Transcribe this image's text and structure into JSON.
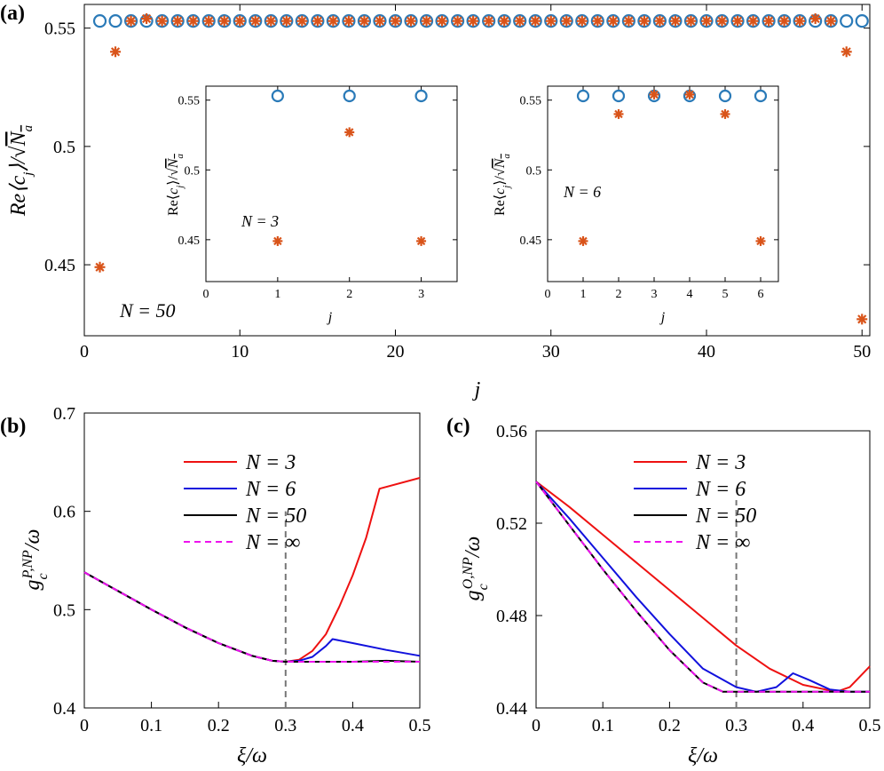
{
  "chart_data": [
    {
      "id": "a",
      "panel_label": "(a)",
      "type": "scatter",
      "xlabel": "j",
      "ylabel": "Re⟨c_j⟩/√N_a",
      "xlim": [
        0,
        50.5
      ],
      "ylim": [
        0.42,
        0.56
      ],
      "xticks": [
        "0",
        "10",
        "20",
        "30",
        "40",
        "50"
      ],
      "yticks": [
        "0.45",
        "0.5",
        "0.55"
      ],
      "annotation": "N = 50",
      "series": [
        {
          "name": "circles",
          "marker": "circle",
          "color": "#2a7ab8",
          "x": [
            1,
            2,
            3,
            4,
            5,
            6,
            7,
            8,
            9,
            10,
            11,
            12,
            13,
            14,
            15,
            16,
            17,
            18,
            19,
            20,
            21,
            22,
            23,
            24,
            25,
            26,
            27,
            28,
            29,
            30,
            31,
            32,
            33,
            34,
            35,
            36,
            37,
            38,
            39,
            40,
            41,
            42,
            43,
            44,
            45,
            46,
            47,
            48,
            49,
            50
          ],
          "y": [
            0.553,
            0.553,
            0.553,
            0.553,
            0.553,
            0.553,
            0.553,
            0.553,
            0.553,
            0.553,
            0.553,
            0.553,
            0.553,
            0.553,
            0.553,
            0.553,
            0.553,
            0.553,
            0.553,
            0.553,
            0.553,
            0.553,
            0.553,
            0.553,
            0.553,
            0.553,
            0.553,
            0.553,
            0.553,
            0.553,
            0.553,
            0.553,
            0.553,
            0.553,
            0.553,
            0.553,
            0.553,
            0.553,
            0.553,
            0.553,
            0.553,
            0.553,
            0.553,
            0.553,
            0.553,
            0.553,
            0.553,
            0.553,
            0.553,
            0.553
          ]
        },
        {
          "name": "stars",
          "marker": "star",
          "color": "#d9541a",
          "x": [
            1,
            2,
            3,
            4,
            5,
            6,
            7,
            8,
            9,
            10,
            11,
            12,
            13,
            14,
            15,
            16,
            17,
            18,
            19,
            20,
            21,
            22,
            23,
            24,
            25,
            26,
            27,
            28,
            29,
            30,
            31,
            32,
            33,
            34,
            35,
            36,
            37,
            38,
            39,
            40,
            41,
            42,
            43,
            44,
            45,
            46,
            47,
            48,
            49,
            50
          ],
          "y": [
            0.449,
            0.54,
            0.553,
            0.554,
            0.553,
            0.553,
            0.553,
            0.553,
            0.553,
            0.553,
            0.553,
            0.553,
            0.553,
            0.553,
            0.553,
            0.553,
            0.553,
            0.553,
            0.553,
            0.553,
            0.553,
            0.553,
            0.553,
            0.553,
            0.553,
            0.553,
            0.553,
            0.553,
            0.553,
            0.553,
            0.553,
            0.553,
            0.553,
            0.553,
            0.553,
            0.553,
            0.553,
            0.553,
            0.553,
            0.553,
            0.553,
            0.553,
            0.553,
            0.553,
            0.553,
            0.553,
            0.554,
            0.553,
            0.54,
            0.427
          ]
        }
      ]
    },
    {
      "id": "inset1",
      "type": "scatter",
      "xlabel": "j",
      "ylabel": "Re⟨c_j⟩/√N_a",
      "xlim": [
        0,
        3.5
      ],
      "ylim": [
        0.42,
        0.56
      ],
      "xticks": [
        "0",
        "1",
        "2",
        "3"
      ],
      "yticks": [
        "0.45",
        "0.5",
        "0.55"
      ],
      "annotation": "N = 3",
      "series": [
        {
          "name": "circles",
          "marker": "circle",
          "color": "#2a7ab8",
          "x": [
            1,
            2,
            3
          ],
          "y": [
            0.553,
            0.553,
            0.553
          ]
        },
        {
          "name": "stars",
          "marker": "star",
          "color": "#d9541a",
          "x": [
            1,
            2,
            3
          ],
          "y": [
            0.449,
            0.527,
            0.449
          ]
        }
      ]
    },
    {
      "id": "inset2",
      "type": "scatter",
      "xlabel": "j",
      "ylabel": "Re⟨c_j⟩/√N_a",
      "xlim": [
        0,
        6.5
      ],
      "ylim": [
        0.42,
        0.56
      ],
      "xticks": [
        "0",
        "1",
        "2",
        "3",
        "4",
        "5",
        "6"
      ],
      "yticks": [
        "0.45",
        "0.5",
        "0.55"
      ],
      "annotation": "N = 6",
      "series": [
        {
          "name": "circles",
          "marker": "circle",
          "color": "#2a7ab8",
          "x": [
            1,
            2,
            3,
            4,
            5,
            6
          ],
          "y": [
            0.553,
            0.553,
            0.553,
            0.553,
            0.553,
            0.553
          ]
        },
        {
          "name": "stars",
          "marker": "star",
          "color": "#d9541a",
          "x": [
            1,
            2,
            3,
            4,
            5,
            6
          ],
          "y": [
            0.449,
            0.54,
            0.554,
            0.554,
            0.54,
            0.449
          ]
        }
      ]
    },
    {
      "id": "b",
      "panel_label": "(b)",
      "type": "line",
      "xlabel": "ξ/ω",
      "ylabel": "g_c^{P,NP}/ω",
      "xlim": [
        0,
        0.5
      ],
      "ylim": [
        0.4,
        0.7
      ],
      "xticks": [
        "0",
        "0.1",
        "0.2",
        "0.3",
        "0.4",
        "0.5"
      ],
      "yticks": [
        "0.4",
        "0.5",
        "0.6",
        "0.7"
      ],
      "vline": 0.3,
      "legend": [
        "N = 3",
        "N = 6",
        "N = 50",
        "N = ∞"
      ],
      "series": [
        {
          "name": "N = 3",
          "color": "#ee1111",
          "dash": false,
          "x": [
            0,
            0.05,
            0.1,
            0.15,
            0.2,
            0.25,
            0.28,
            0.3,
            0.32,
            0.34,
            0.36,
            0.38,
            0.4,
            0.42,
            0.44,
            0.5
          ],
          "y": [
            0.538,
            0.519,
            0.5,
            0.482,
            0.466,
            0.453,
            0.448,
            0.447,
            0.449,
            0.458,
            0.475,
            0.503,
            0.535,
            0.573,
            0.623,
            0.634
          ]
        },
        {
          "name": "N = 6",
          "color": "#1111dd",
          "dash": false,
          "x": [
            0,
            0.05,
            0.1,
            0.15,
            0.2,
            0.25,
            0.28,
            0.3,
            0.32,
            0.34,
            0.36,
            0.37,
            0.4,
            0.45,
            0.5
          ],
          "y": [
            0.538,
            0.519,
            0.5,
            0.482,
            0.466,
            0.453,
            0.448,
            0.447,
            0.448,
            0.452,
            0.463,
            0.47,
            0.466,
            0.459,
            0.453
          ]
        },
        {
          "name": "N = 50",
          "color": "#000000",
          "dash": false,
          "x": [
            0,
            0.05,
            0.1,
            0.15,
            0.2,
            0.25,
            0.28,
            0.3,
            0.35,
            0.4,
            0.45,
            0.5
          ],
          "y": [
            0.538,
            0.519,
            0.5,
            0.482,
            0.466,
            0.453,
            0.448,
            0.447,
            0.447,
            0.447,
            0.448,
            0.447
          ]
        },
        {
          "name": "N = ∞",
          "color": "#ee11ee",
          "dash": true,
          "x": [
            0,
            0.05,
            0.1,
            0.15,
            0.2,
            0.25,
            0.28,
            0.3,
            0.35,
            0.4,
            0.45,
            0.5
          ],
          "y": [
            0.538,
            0.519,
            0.5,
            0.482,
            0.466,
            0.453,
            0.448,
            0.447,
            0.447,
            0.447,
            0.447,
            0.447
          ]
        }
      ]
    },
    {
      "id": "c",
      "panel_label": "(c)",
      "type": "line",
      "xlabel": "ξ/ω",
      "ylabel": "g_c^{O,NP}/ω",
      "xlim": [
        0,
        0.5
      ],
      "ylim": [
        0.44,
        0.56
      ],
      "xticks": [
        "0",
        "0.1",
        "0.2",
        "0.3",
        "0.4",
        "0.5"
      ],
      "yticks": [
        "0.44",
        "0.48",
        "0.52",
        "0.56"
      ],
      "vline": 0.3,
      "legend": [
        "N = 3",
        "N = 6",
        "N = 50",
        "N = ∞"
      ],
      "series": [
        {
          "name": "N = 3",
          "color": "#ee1111",
          "dash": false,
          "x": [
            0,
            0.05,
            0.1,
            0.15,
            0.2,
            0.25,
            0.3,
            0.35,
            0.4,
            0.45,
            0.47,
            0.5
          ],
          "y": [
            0.538,
            0.527,
            0.515,
            0.503,
            0.491,
            0.479,
            0.467,
            0.457,
            0.45,
            0.447,
            0.449,
            0.458
          ]
        },
        {
          "name": "N = 6",
          "color": "#1111dd",
          "dash": false,
          "x": [
            0,
            0.05,
            0.1,
            0.15,
            0.2,
            0.25,
            0.3,
            0.33,
            0.36,
            0.385,
            0.41,
            0.44,
            0.47,
            0.5
          ],
          "y": [
            0.538,
            0.522,
            0.505,
            0.488,
            0.472,
            0.457,
            0.449,
            0.447,
            0.449,
            0.455,
            0.452,
            0.448,
            0.447,
            0.447
          ]
        },
        {
          "name": "N = 50",
          "color": "#000000",
          "dash": false,
          "x": [
            0,
            0.05,
            0.1,
            0.15,
            0.2,
            0.25,
            0.28,
            0.3,
            0.4,
            0.5
          ],
          "y": [
            0.538,
            0.519,
            0.5,
            0.482,
            0.465,
            0.451,
            0.447,
            0.447,
            0.447,
            0.447
          ]
        },
        {
          "name": "N = ∞",
          "color": "#ee11ee",
          "dash": true,
          "x": [
            0,
            0.05,
            0.1,
            0.15,
            0.2,
            0.25,
            0.28,
            0.3,
            0.4,
            0.5
          ],
          "y": [
            0.538,
            0.519,
            0.5,
            0.482,
            0.465,
            0.451,
            0.447,
            0.447,
            0.447,
            0.447
          ]
        }
      ]
    }
  ]
}
